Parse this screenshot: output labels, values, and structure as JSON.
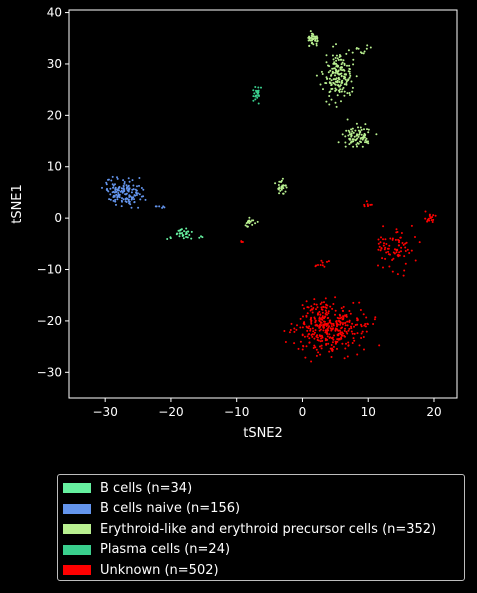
{
  "chart_data": {
    "type": "scatter",
    "title": "",
    "xlabel": "tSNE2",
    "ylabel": "tSNE1",
    "xlim": [
      -35.5,
      23.5
    ],
    "ylim": [
      -35,
      40.5
    ],
    "xticks": [
      -30,
      -20,
      -10,
      0,
      10,
      20
    ],
    "yticks": [
      -30,
      -20,
      -10,
      0,
      10,
      20,
      30,
      40
    ],
    "legend_position": "below",
    "series": [
      {
        "name": "B cells (n=34)",
        "color": "#66f0a0",
        "n": 34,
        "clusters": [
          {
            "center": [
              -18,
              -3
            ],
            "spread": [
              1.4,
              1.2
            ],
            "n": 28
          },
          {
            "center": [
              -15.5,
              -4
            ],
            "spread": [
              0.5,
              0.5
            ],
            "n": 3
          },
          {
            "center": [
              -20,
              -4
            ],
            "spread": [
              0.5,
              0.5
            ],
            "n": 3
          }
        ]
      },
      {
        "name": "B cells naive (n=156)",
        "color": "#6495ed",
        "n": 156,
        "clusters": [
          {
            "center": [
              -27,
              5
            ],
            "spread": [
              2.6,
              2.3
            ],
            "n": 150
          },
          {
            "center": [
              -22,
              2
            ],
            "spread": [
              1.0,
              1.0
            ],
            "n": 6
          }
        ]
      },
      {
        "name": "Erythroid-like and erythroid precursor cells (n=352)",
        "color": "#b9f090",
        "n": 352,
        "clusters": [
          {
            "center": [
              5.5,
              28
            ],
            "spread": [
              2.0,
              4.5
            ],
            "n": 170
          },
          {
            "center": [
              1.5,
              35
            ],
            "spread": [
              1.0,
              1.2
            ],
            "n": 40
          },
          {
            "center": [
              8,
              16
            ],
            "spread": [
              2.2,
              2.0
            ],
            "n": 85
          },
          {
            "center": [
              -3,
              6
            ],
            "spread": [
              0.9,
              1.3
            ],
            "n": 28
          },
          {
            "center": [
              -8,
              -1
            ],
            "spread": [
              1.0,
              1.3
            ],
            "n": 18
          },
          {
            "center": [
              9,
              33
            ],
            "spread": [
              1.5,
              1.5
            ],
            "n": 11
          }
        ]
      },
      {
        "name": "Plasma cells (n=24)",
        "color": "#3ad08e",
        "n": 24,
        "clusters": [
          {
            "center": [
              -7,
              24
            ],
            "spread": [
              0.5,
              1.2
            ],
            "n": 22
          },
          {
            "center": [
              -6.5,
              25.5
            ],
            "spread": [
              0.3,
              0.3
            ],
            "n": 2
          }
        ]
      },
      {
        "name": "Unknown (n=502)",
        "color": "#ff0000",
        "n": 502,
        "clusters": [
          {
            "center": [
              4,
              -21
            ],
            "spread": [
              5.0,
              4.2
            ],
            "n": 380
          },
          {
            "center": [
              14.5,
              -6
            ],
            "spread": [
              2.6,
              4.0
            ],
            "n": 70
          },
          {
            "center": [
              19.5,
              0
            ],
            "spread": [
              0.9,
              1.0
            ],
            "n": 18
          },
          {
            "center": [
              10,
              2.5
            ],
            "spread": [
              0.7,
              0.7
            ],
            "n": 8
          },
          {
            "center": [
              12,
              -5
            ],
            "spread": [
              0.8,
              1.5
            ],
            "n": 10
          },
          {
            "center": [
              3,
              -9
            ],
            "spread": [
              1.0,
              1.0
            ],
            "n": 10
          },
          {
            "center": [
              -9,
              -4.5
            ],
            "spread": [
              0.3,
              0.3
            ],
            "n": 3
          },
          {
            "center": [
              0,
              -27
            ],
            "spread": [
              1.5,
              1.5
            ],
            "n": 3
          }
        ]
      }
    ]
  }
}
